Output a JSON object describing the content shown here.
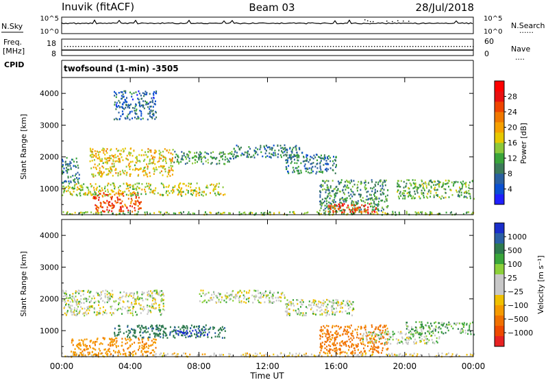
{
  "header": {
    "site": "Inuvik (fitACF)",
    "beam": "Beam 03",
    "date": "28/Jul/2018"
  },
  "panels": {
    "nsky": {
      "left_label": "N.Sky",
      "left_ticks": [
        "10^5",
        "10^0"
      ],
      "right_ticks": [
        "10^5",
        "10^0"
      ],
      "right_label": "N.Search",
      "right_legend": "......"
    },
    "freq": {
      "left_label_line1": "Freq.",
      "left_label_line2": "[MHz]",
      "left_ticks": [
        "18",
        "8"
      ],
      "right_ticks": [
        "60",
        "0"
      ],
      "right_label": "Nave",
      "right_legend": "...."
    },
    "cpid": {
      "left_label": "CPID",
      "text": "twofsound (1-min) -3505"
    }
  },
  "x_axis": {
    "title": "Time UT",
    "ticks": [
      "00:00",
      "04:00",
      "08:00",
      "12:00",
      "16:00",
      "20:00",
      "00:00"
    ]
  },
  "chart_data": [
    {
      "type": "heatmap",
      "name": "power",
      "xlabel": "Time UT",
      "ylabel": "Slant Range [km]",
      "x_range_hours": [
        0,
        24
      ],
      "ylim": [
        180,
        4500
      ],
      "yticks": [
        1000,
        2000,
        3000,
        4000
      ],
      "colorbar": {
        "label": "Power [dB]",
        "ticks": [
          "4",
          "8",
          "12",
          "16",
          "20",
          "24",
          "28"
        ],
        "colors": [
          "#1f1fff",
          "#0a4fd2",
          "#2a5fa0",
          "#3c7a5a",
          "#3aa43a",
          "#8cc83a",
          "#e6c800",
          "#f5a000",
          "#f07800",
          "#ee4400",
          "#e81010",
          "#ff0000"
        ]
      },
      "echo_regions": [
        {
          "t_start": 0.0,
          "t_end": 24.0,
          "r_start": 200,
          "r_end": 300,
          "level_db": 14
        },
        {
          "t_start": 1.8,
          "t_end": 4.6,
          "r_start": 300,
          "r_end": 900,
          "level_db": 26
        },
        {
          "t_start": 0.0,
          "t_end": 9.5,
          "r_start": 800,
          "r_end": 1200,
          "level_db": 16
        },
        {
          "t_start": 0.0,
          "t_end": 1.0,
          "r_start": 1200,
          "r_end": 2000,
          "level_db": 8
        },
        {
          "t_start": 1.6,
          "t_end": 6.5,
          "r_start": 1400,
          "r_end": 2300,
          "level_db": 18
        },
        {
          "t_start": 6.5,
          "t_end": 10.0,
          "r_start": 1800,
          "r_end": 2200,
          "level_db": 10
        },
        {
          "t_start": 10.0,
          "t_end": 14.0,
          "r_start": 2000,
          "r_end": 2400,
          "level_db": 8
        },
        {
          "t_start": 13.0,
          "t_end": 16.0,
          "r_start": 1500,
          "r_end": 2100,
          "level_db": 8
        },
        {
          "t_start": 15.0,
          "t_end": 19.0,
          "r_start": 300,
          "r_end": 1300,
          "level_db": 10
        },
        {
          "t_start": 15.5,
          "t_end": 18.3,
          "r_start": 250,
          "r_end": 550,
          "level_db": 27
        },
        {
          "t_start": 19.5,
          "t_end": 24.0,
          "r_start": 700,
          "r_end": 1300,
          "level_db": 12
        },
        {
          "t_start": 3.0,
          "t_end": 5.5,
          "r_start": 3200,
          "r_end": 4100,
          "level_db": 6
        }
      ]
    },
    {
      "type": "heatmap",
      "name": "velocity",
      "xlabel": "Time UT",
      "ylabel": "Slant Range [km]",
      "x_range_hours": [
        0,
        24
      ],
      "ylim": [
        180,
        4500
      ],
      "yticks": [
        1000,
        2000,
        3000,
        4000
      ],
      "colorbar": {
        "label": "Velocity [m s⁻¹]",
        "ticks": [
          "1000",
          "500",
          "100",
          "25",
          "−25",
          "−100",
          "−500",
          "−1000"
        ],
        "colors": [
          "#1a2ecc",
          "#2b5fa4",
          "#2e7a4e",
          "#3aa63a",
          "#8cd03a",
          "#c8c8c8",
          "#c8c8c8",
          "#f0c000",
          "#f59a00",
          "#f07000",
          "#ee4a00",
          "#e82222"
        ]
      },
      "echo_regions": [
        {
          "t_start": 0.0,
          "t_end": 24.0,
          "r_start": 200,
          "r_end": 320,
          "velocity": -50
        },
        {
          "t_start": 0.5,
          "t_end": 5.5,
          "r_start": 250,
          "r_end": 800,
          "velocity": -200
        },
        {
          "t_start": 3.0,
          "t_end": 9.5,
          "r_start": 800,
          "r_end": 1200,
          "velocity": 200
        },
        {
          "t_start": 6.5,
          "t_end": 8.5,
          "r_start": 850,
          "r_end": 1050,
          "velocity": 700
        },
        {
          "t_start": 0.0,
          "t_end": 6.0,
          "r_start": 1500,
          "r_end": 2300,
          "velocity": 0
        },
        {
          "t_start": 8.0,
          "t_end": 13.0,
          "r_start": 1900,
          "r_end": 2300,
          "velocity": 0
        },
        {
          "t_start": 13.0,
          "t_end": 17.0,
          "r_start": 1500,
          "r_end": 2000,
          "velocity": 0
        },
        {
          "t_start": 15.0,
          "t_end": 19.0,
          "r_start": 300,
          "r_end": 1200,
          "velocity": -300
        },
        {
          "t_start": 17.5,
          "t_end": 22.0,
          "r_start": 600,
          "r_end": 1000,
          "velocity": 0
        },
        {
          "t_start": 20.0,
          "t_end": 24.0,
          "r_start": 900,
          "r_end": 1300,
          "velocity": 60
        }
      ]
    }
  ]
}
